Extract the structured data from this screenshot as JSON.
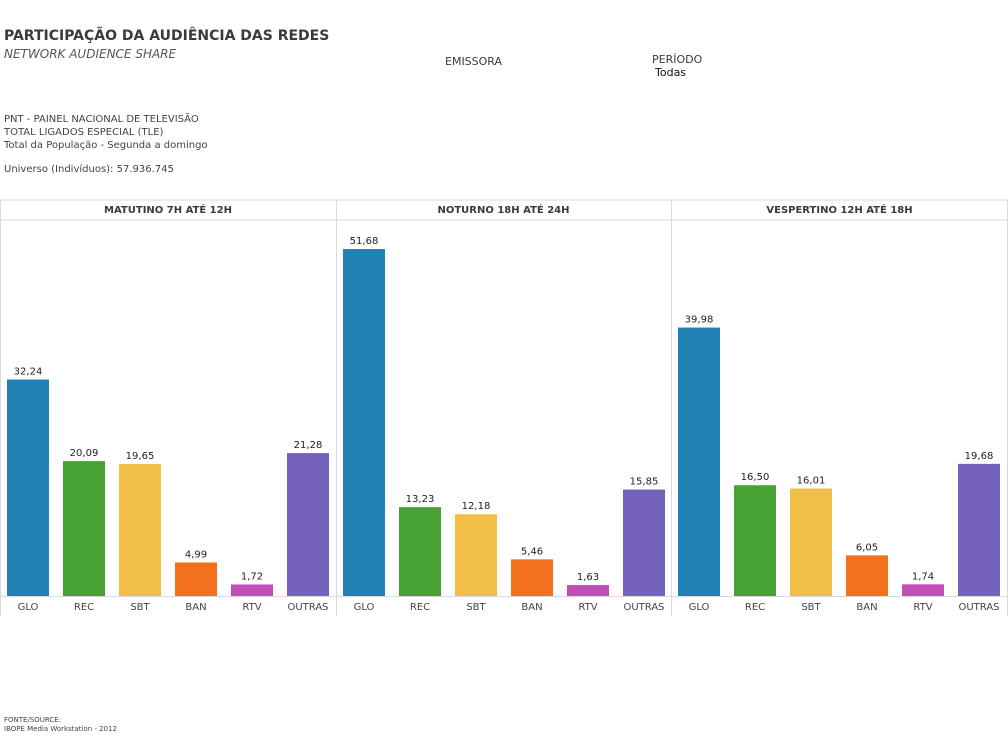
{
  "header": {
    "title": "PARTICIPAÇÃO DA AUDIÊNCIA DAS REDES",
    "subtitle": "NETWORK AUDIENCE SHARE"
  },
  "filters": {
    "emissora_label": "EMISSORA",
    "periodo_label": "PERÍODO",
    "periodo_value": "Todas"
  },
  "info": {
    "line1": "PNT - PAINEL NACIONAL DE TELEVISÃO",
    "line2": "TOTAL LIGADOS ESPECIAL (TLE)",
    "line3": "Total da População - Segunda a domingo",
    "universe": "Universo (Indivíduos): 57.936.745"
  },
  "source": {
    "line1": "FONTE/SOURCE:",
    "line2": "IBOPE Media Workstation - 2012"
  },
  "colors": {
    "GLO": "#2181b5",
    "REC": "#48a236",
    "SBT": "#f1bf47",
    "BAN": "#f2711c",
    "RTV": "#c24fb8",
    "OUTRAS": "#7462bc",
    "grid": "#d9d9d9"
  },
  "chart_data": [
    {
      "type": "bar",
      "title": "MATUTINO 7H ATÉ 12H",
      "categories": [
        "GLO",
        "REC",
        "SBT",
        "BAN",
        "RTV",
        "OUTRAS"
      ],
      "values": [
        32.24,
        20.09,
        19.65,
        4.99,
        1.72,
        21.28
      ],
      "value_labels": [
        "32,24",
        "20,09",
        "19,65",
        "4,99",
        "1,72",
        "21,28"
      ],
      "ylim": [
        0,
        56
      ]
    },
    {
      "type": "bar",
      "title": "NOTURNO 18H ATÉ 24H",
      "categories": [
        "GLO",
        "REC",
        "SBT",
        "BAN",
        "RTV",
        "OUTRAS"
      ],
      "values": [
        51.68,
        13.23,
        12.18,
        5.46,
        1.63,
        15.85
      ],
      "value_labels": [
        "51,68",
        "13,23",
        "12,18",
        "5,46",
        "1,63",
        "15,85"
      ],
      "ylim": [
        0,
        56
      ]
    },
    {
      "type": "bar",
      "title": "VESPERTINO 12H ATÉ 18H",
      "categories": [
        "GLO",
        "REC",
        "SBT",
        "BAN",
        "RTV",
        "OUTRAS"
      ],
      "values": [
        39.98,
        16.5,
        16.01,
        6.05,
        1.74,
        19.68
      ],
      "value_labels": [
        "39,98",
        "16,50",
        "16,01",
        "6,05",
        "1,74",
        "19,68"
      ],
      "ylim": [
        0,
        56
      ]
    }
  ]
}
